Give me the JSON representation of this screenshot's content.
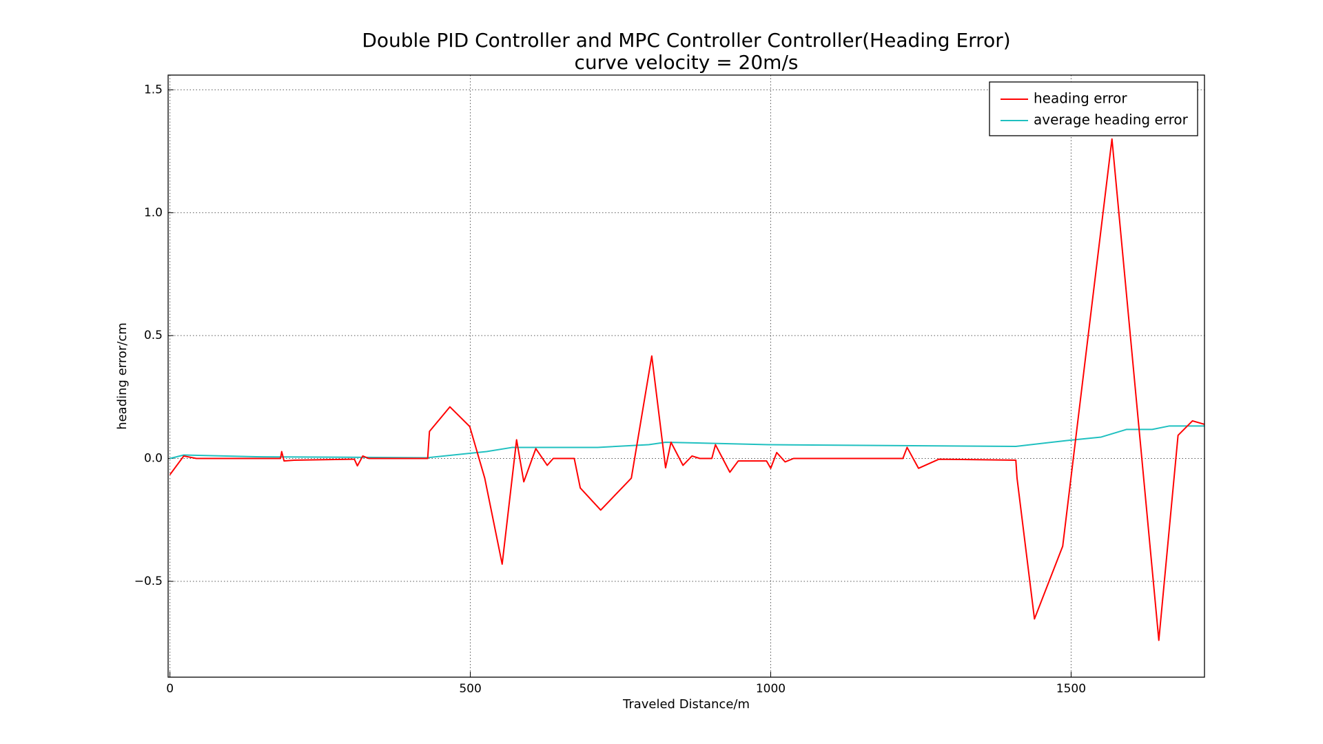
{
  "chart_data": {
    "type": "line",
    "title": "Double PID Controller and MPC Controller Controller(Heading Error)",
    "subtitle": "curve velocity = 20m/s",
    "xlabel": "Traveled Distance/m",
    "ylabel": "heading error/cm",
    "xlim": [
      -3,
      1722
    ],
    "ylim": [
      -0.89,
      1.56
    ],
    "xticks": [
      0,
      500,
      1000,
      1500
    ],
    "yticks": [
      {
        "value": -0.5,
        "label": "−0.5"
      },
      {
        "value": 0,
        "label": "0.0"
      },
      0.5,
      {
        "value": 1,
        "label": "1.0"
      },
      1.5
    ],
    "grid": true,
    "legend": "upper right",
    "series": [
      {
        "name": "heading error",
        "color": "#ff0000",
        "x": [
          0,
          23,
          44,
          184,
          186,
          190,
          207,
          307,
          312,
          321,
          331,
          429,
          432,
          466,
          499,
          524,
          553,
          577,
          589,
          609,
          628,
          638,
          673,
          683,
          717,
          768,
          802,
          825,
          834,
          854,
          869,
          882,
          902,
          908,
          932,
          946,
          993,
          1000,
          1010,
          1024,
          1038,
          1220,
          1227,
          1246,
          1280,
          1408,
          1410,
          1439,
          1486,
          1568,
          1646,
          1678,
          1702,
          1722
        ],
        "values": [
          -0.066,
          0.01,
          0,
          0,
          0.028,
          -0.01,
          -0.007,
          -0.003,
          -0.03,
          0.01,
          0,
          0,
          0.11,
          0.21,
          0.13,
          -0.08,
          -0.43,
          0.076,
          -0.095,
          0.04,
          -0.028,
          0,
          0,
          -0.12,
          -0.21,
          -0.08,
          0.417,
          -0.038,
          0.066,
          -0.028,
          0.01,
          0,
          0,
          0.056,
          -0.056,
          -0.01,
          -0.01,
          -0.04,
          0.024,
          -0.014,
          0,
          0,
          0.045,
          -0.04,
          -0.003,
          -0.007,
          -0.08,
          -0.653,
          -0.357,
          1.3,
          -0.74,
          0.094,
          0.153,
          0.139
        ]
      },
      {
        "name": "average heading error",
        "color": "#1fc0c0",
        "x": [
          0,
          23,
          143,
          428,
          527,
          570,
          712,
          797,
          825,
          996,
          1408,
          1493,
          1550,
          1592,
          1635,
          1663,
          1722
        ],
        "values": [
          0,
          0.014,
          0.007,
          0.003,
          0.028,
          0.045,
          0.045,
          0.056,
          0.066,
          0.056,
          0.049,
          0.073,
          0.087,
          0.118,
          0.118,
          0.132,
          0.132
        ]
      }
    ]
  }
}
